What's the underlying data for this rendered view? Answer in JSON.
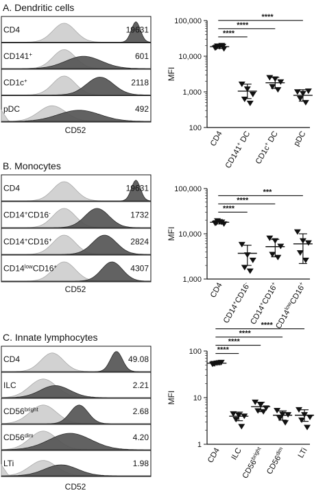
{
  "colors": {
    "light": "#d2d2d2",
    "dark": "#555555",
    "lightEdge": "#a8a8a8",
    "darkEdge": "#2a2a2a",
    "axis": "#111111"
  },
  "chart_data": [
    {
      "panel_letter": "A.",
      "panel_title": "Dendritic cells",
      "type": "histogram",
      "xlabel": "CD52",
      "rows": [
        {
          "label": "CD4",
          "sup": "",
          "tail": "",
          "mfi": "19631",
          "light": {
            "center": 0.42,
            "width": 0.075,
            "height": 0.85
          },
          "dark": {
            "center": 0.9,
            "width": 0.03,
            "height": 0.92
          }
        },
        {
          "label": "CD141",
          "sup": "+",
          "tail": "",
          "mfi": "601",
          "light": {
            "center": 0.42,
            "width": 0.075,
            "height": 0.85
          },
          "dark": {
            "center": 0.55,
            "width": 0.12,
            "height": 0.55
          }
        },
        {
          "label": "CD1c",
          "sup": "+",
          "tail": "",
          "mfi": "2118",
          "light": {
            "center": 0.42,
            "width": 0.075,
            "height": 0.85
          },
          "dark": {
            "center": 0.66,
            "width": 0.09,
            "height": 0.8
          }
        },
        {
          "label": "pDC",
          "sup": "",
          "tail": "",
          "mfi": "492",
          "light": {
            "center": 0.34,
            "width": 0.09,
            "height": 0.7
          },
          "dark": {
            "center": 0.52,
            "width": 0.14,
            "height": 0.5
          }
        }
      ]
    },
    {
      "type": "scatter",
      "ylabel": "MFI",
      "yscale": "log",
      "ylim": [
        100,
        100000
      ],
      "yticks": [
        100,
        1000,
        10000,
        100000
      ],
      "ytick_labels": [
        "100",
        "1,000",
        "10,000",
        "100,000"
      ],
      "categories": [
        {
          "base": "CD4",
          "sup": "",
          "tail": ""
        },
        {
          "base": "CD141",
          "sup": "+",
          "tail": " DC"
        },
        {
          "base": "CD1c",
          "sup": "+",
          "tail": " DC"
        },
        {
          "base": "pDC",
          "sup": "",
          "tail": ""
        }
      ],
      "groups": [
        {
          "marker": "triangle-down",
          "mean": 18500,
          "sd_low": 16500,
          "sd_high": 20500,
          "points": [
            17000,
            18500,
            16200,
            19200,
            20000,
            17800,
            18900
          ]
        },
        {
          "marker": "triangle-down",
          "mean": 1050,
          "sd_low": 650,
          "sd_high": 1650,
          "points": [
            1650,
            1200,
            850,
            620,
            480
          ]
        },
        {
          "marker": "triangle-down",
          "mean": 1800,
          "sd_low": 1250,
          "sd_high": 2550,
          "points": [
            2500,
            2300,
            1900,
            1400,
            1150
          ]
        },
        {
          "marker": "triangle-down",
          "mean": 800,
          "sd_low": 550,
          "sd_high": 1150,
          "points": [
            1000,
            900,
            1050,
            650,
            500
          ]
        }
      ],
      "significance": [
        {
          "from": 0,
          "to": 1,
          "label": "****"
        },
        {
          "from": 0,
          "to": 2,
          "label": "****"
        },
        {
          "from": 0,
          "to": 3,
          "label": "****"
        }
      ]
    },
    {
      "panel_letter": "B.",
      "panel_title": "Monocytes",
      "type": "histogram",
      "xlabel": "CD52",
      "rows": [
        {
          "label": "CD4",
          "sup": "",
          "tail": "",
          "sup2": "",
          "mfi": "19631",
          "light": {
            "center": 0.42,
            "width": 0.075,
            "height": 0.85
          },
          "dark": {
            "center": 0.9,
            "width": 0.03,
            "height": 0.92
          }
        },
        {
          "label": "CD14",
          "sup": "+",
          "tail": "CD16",
          "sup2": "-",
          "mfi": "1732",
          "light": {
            "center": 0.42,
            "width": 0.075,
            "height": 0.85
          },
          "dark": {
            "center": 0.64,
            "width": 0.08,
            "height": 0.85
          }
        },
        {
          "label": "CD14",
          "sup": "+",
          "tail": "CD16",
          "sup2": "+",
          "mfi": "2824",
          "light": {
            "center": 0.42,
            "width": 0.075,
            "height": 0.85
          },
          "dark": {
            "center": 0.69,
            "width": 0.08,
            "height": 0.85
          }
        },
        {
          "label": "CD14",
          "sup": "low",
          "tail": "CD16",
          "sup2": "+",
          "mfi": "4307",
          "light": {
            "center": 0.42,
            "width": 0.075,
            "height": 0.85
          },
          "dark": {
            "center": 0.74,
            "width": 0.07,
            "height": 0.85
          }
        }
      ]
    },
    {
      "type": "scatter",
      "ylabel": "MFI",
      "yscale": "log",
      "ylim": [
        1000,
        100000
      ],
      "yticks": [
        1000,
        10000,
        100000
      ],
      "ytick_labels": [
        "1,000",
        "10,000",
        "100,000"
      ],
      "categories": [
        {
          "base": "CD4",
          "sup": "",
          "tail": "",
          "sup2": ""
        },
        {
          "base": "CD14",
          "sup": "+",
          "tail": "CD16",
          "sup2": "-"
        },
        {
          "base": "CD14",
          "sup": "+",
          "tail": "CD16",
          "sup2": "+"
        },
        {
          "base": "CD14",
          "sup": "low",
          "tail": "CD16",
          "sup2": "+"
        }
      ],
      "groups": [
        {
          "marker": "triangle-down",
          "mean": 18000,
          "sd_low": 16500,
          "sd_high": 19800,
          "points": [
            17000,
            18500,
            16500,
            19300,
            18000,
            17500
          ]
        },
        {
          "marker": "triangle-down",
          "mean": 3700,
          "sd_low": 2000,
          "sd_high": 5600,
          "points": [
            5800,
            3400,
            2600,
            1800,
            1500
          ]
        },
        {
          "marker": "triangle-down",
          "mean": 5200,
          "sd_low": 3100,
          "sd_high": 7500,
          "points": [
            8000,
            7000,
            5300,
            3500,
            3000
          ]
        },
        {
          "marker": "triangle-down",
          "mean": 6000,
          "sd_low": 2200,
          "sd_high": 10000,
          "points": [
            11000,
            7000,
            6300,
            3800,
            2600
          ]
        }
      ],
      "significance": [
        {
          "from": 0,
          "to": 1,
          "label": "****"
        },
        {
          "from": 0,
          "to": 2,
          "label": "****"
        },
        {
          "from": 0,
          "to": 3,
          "label": "***"
        }
      ]
    },
    {
      "panel_letter": "C.",
      "panel_title": "Innate lymphocytes",
      "type": "histogram",
      "xlabel": "CD52",
      "rows": [
        {
          "label": "CD4",
          "sup": "",
          "mfi": "49.08",
          "light": {
            "center": 0.34,
            "width": 0.075,
            "height": 0.85
          },
          "dark": {
            "center": 0.77,
            "width": 0.04,
            "height": 0.92
          }
        },
        {
          "label": "ILC",
          "sup": "",
          "mfi": "2.21",
          "light": {
            "center": 0.28,
            "width": 0.09,
            "height": 0.85
          },
          "dark": {
            "center": 0.36,
            "width": 0.1,
            "height": 0.55
          }
        },
        {
          "label": "CD56",
          "sup": "bright",
          "mfi": "2.68",
          "light": {
            "center": 0.28,
            "width": 0.09,
            "height": 0.85
          },
          "dark": {
            "center": 0.52,
            "width": 0.06,
            "height": 0.85
          }
        },
        {
          "label": "CD56",
          "sup": "dim",
          "mfi": "4.20",
          "light": {
            "center": 0.28,
            "width": 0.09,
            "height": 0.85
          },
          "dark": {
            "center": 0.46,
            "width": 0.14,
            "height": 0.75
          }
        },
        {
          "label": "LTi",
          "sup": "",
          "mfi": "1.98",
          "light": {
            "center": 0.28,
            "width": 0.09,
            "height": 0.7
          },
          "dark": {
            "center": 0.4,
            "width": 0.11,
            "height": 0.5
          }
        }
      ]
    },
    {
      "type": "scatter",
      "ylabel": "MFI",
      "yscale": "log",
      "ylim": [
        1,
        100
      ],
      "yticks": [
        1,
        10,
        100
      ],
      "ytick_labels": [
        "1",
        "10",
        "100"
      ],
      "categories": [
        {
          "base": "CD4",
          "sup": ""
        },
        {
          "base": "ILC",
          "sup": ""
        },
        {
          "base": "CD56",
          "sup": "bright"
        },
        {
          "base": "CD56",
          "sup": "dim"
        },
        {
          "base": "LTi",
          "sup": ""
        }
      ],
      "groups": [
        {
          "marker": "triangle-down",
          "mean": 55,
          "sd_low": 51,
          "sd_high": 59,
          "points": [
            52,
            55,
            57,
            53,
            56,
            54
          ]
        },
        {
          "marker": "triangle-down",
          "mean": 4.0,
          "sd_low": 3.2,
          "sd_high": 4.9,
          "points": [
            4.5,
            4.2,
            4.0,
            3.4,
            2.4
          ]
        },
        {
          "marker": "triangle-down",
          "mean": 6.4,
          "sd_low": 5.0,
          "sd_high": 8.0,
          "points": [
            8.0,
            7.0,
            6.0,
            5.2,
            5.0
          ]
        },
        {
          "marker": "triangle-down",
          "mean": 4.2,
          "sd_low": 3.3,
          "sd_high": 5.2,
          "points": [
            5.3,
            4.4,
            4.3,
            3.6,
            2.9
          ]
        },
        {
          "marker": "triangle-down",
          "mean": 4.2,
          "sd_low": 3.1,
          "sd_high": 5.5,
          "points": [
            5.5,
            4.3,
            3.8,
            3.3,
            2.3
          ]
        }
      ],
      "significance": [
        {
          "from": 0,
          "to": 1,
          "label": "****"
        },
        {
          "from": 0,
          "to": 2,
          "label": "****"
        },
        {
          "from": 0,
          "to": 3,
          "label": "****"
        },
        {
          "from": 0,
          "to": 4,
          "label": "****"
        }
      ]
    }
  ]
}
